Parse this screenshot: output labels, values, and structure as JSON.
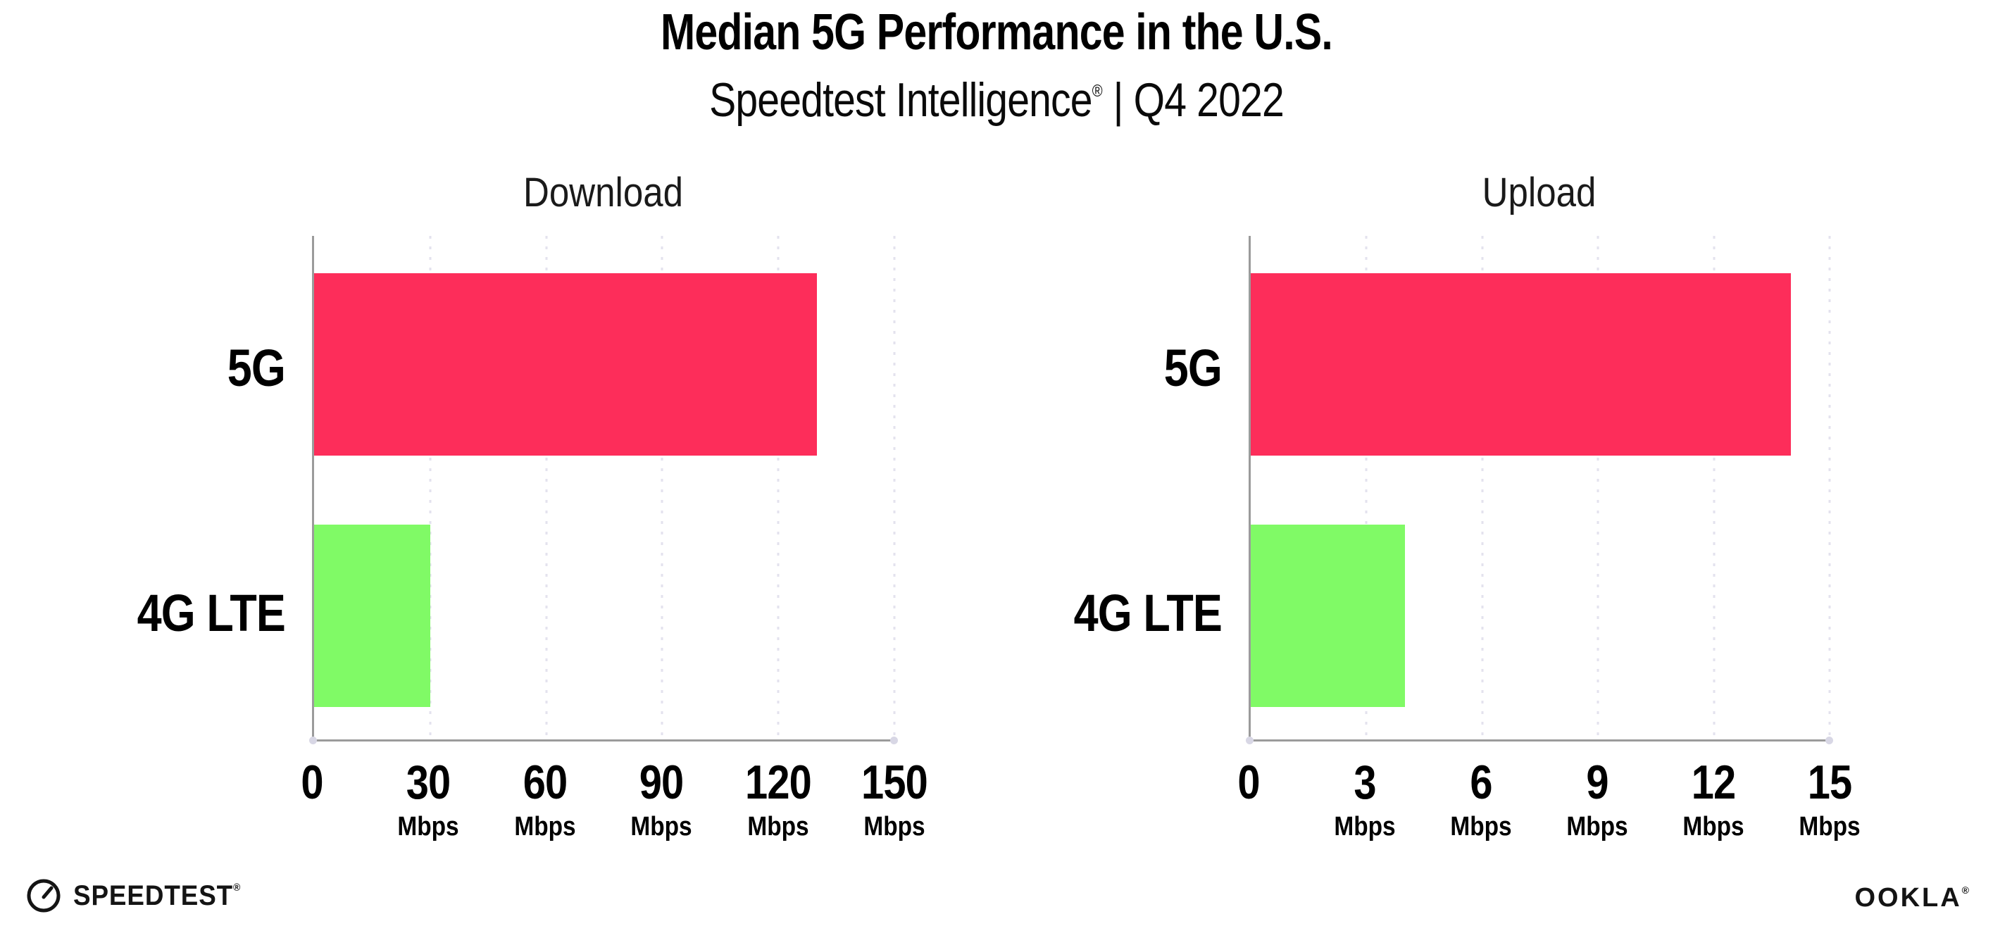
{
  "header": {
    "title": "Median 5G Performance in the U.S.",
    "subtitle_brand": "Speedtest Intelligence",
    "subtitle_reg": "®",
    "subtitle_separator": " | ",
    "subtitle_period": "Q4 2022"
  },
  "colors": {
    "bar_5g": "#FD2D5A",
    "bar_4g_lte": "#80FA66",
    "gridline": "#E3E2EE",
    "axis": "#9B9B9B",
    "axis_end_dot": "#D8D7E5"
  },
  "chart_data": [
    {
      "type": "bar",
      "orientation": "horizontal",
      "title": "Download",
      "categories": [
        "5G",
        "4G LTE"
      ],
      "values": [
        130,
        30
      ],
      "unit": "Mbps",
      "xlim": [
        0,
        150
      ],
      "xticks": [
        0,
        30,
        60,
        90,
        120,
        150
      ],
      "tick_unit": "Mbps",
      "grid": "dotted-vertical",
      "legend": "none",
      "bar_colors": [
        "#FD2D5A",
        "#80FA66"
      ]
    },
    {
      "type": "bar",
      "orientation": "horizontal",
      "title": "Upload",
      "categories": [
        "5G",
        "4G LTE"
      ],
      "values": [
        14,
        4
      ],
      "unit": "Mbps",
      "xlim": [
        0,
        15
      ],
      "xticks": [
        0,
        3,
        6,
        9,
        12,
        15
      ],
      "tick_unit": "Mbps",
      "grid": "dotted-vertical",
      "legend": "none",
      "bar_colors": [
        "#FD2D5A",
        "#80FA66"
      ]
    }
  ],
  "footer": {
    "speedtest_icon": "gauge-needle-icon",
    "speedtest_label": "SPEEDTEST",
    "speedtest_reg": "®",
    "ookla_label": "OOKLA",
    "ookla_reg": "®"
  }
}
